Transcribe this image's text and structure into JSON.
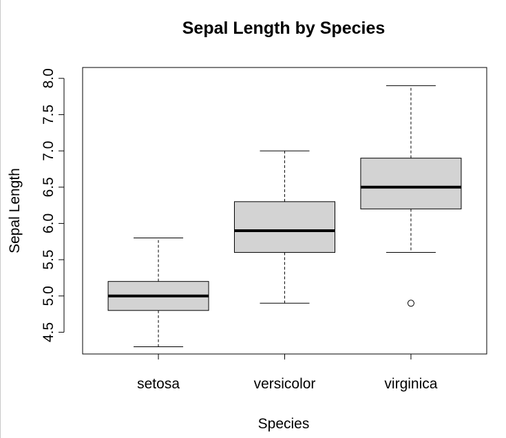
{
  "chart_data": {
    "type": "boxplot",
    "title": "Sepal Length by Species",
    "xlabel": "Species",
    "ylabel": "Sepal Length",
    "categories": [
      "setosa",
      "versicolor",
      "virginica"
    ],
    "ylim": [
      4.2,
      8.15
    ],
    "yticks": [
      4.5,
      5.0,
      5.5,
      6.0,
      6.5,
      7.0,
      7.5,
      8.0
    ],
    "ytick_labels": [
      "4.5",
      "5.0",
      "5.5",
      "6.0",
      "6.5",
      "7.0",
      "7.5",
      "8.0"
    ],
    "boxes": [
      {
        "category": "setosa",
        "whisker_low": 4.3,
        "q1": 4.8,
        "median": 5.0,
        "q3": 5.2,
        "whisker_high": 5.8,
        "outliers": []
      },
      {
        "category": "versicolor",
        "whisker_low": 4.9,
        "q1": 5.6,
        "median": 5.9,
        "q3": 6.3,
        "whisker_high": 7.0,
        "outliers": []
      },
      {
        "category": "virginica",
        "whisker_low": 5.6,
        "q1": 6.2,
        "median": 6.5,
        "q3": 6.9,
        "whisker_high": 7.9,
        "outliers": [
          4.9
        ]
      }
    ],
    "colors": {
      "box_fill": "#d3d3d3",
      "stroke": "#000000"
    },
    "grid": false
  }
}
